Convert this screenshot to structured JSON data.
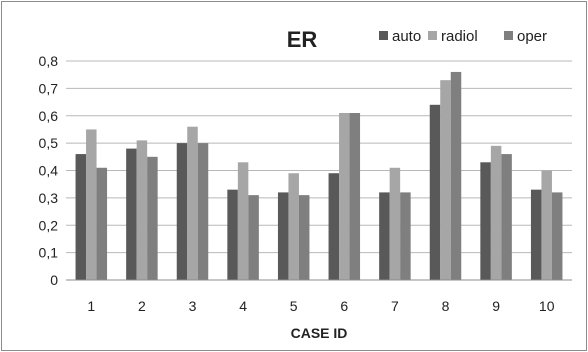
{
  "chart_data": {
    "type": "bar",
    "title": "ER",
    "xlabel": "CASE ID",
    "ylabel": "",
    "ylim": [
      0,
      0.8
    ],
    "yticks": [
      "0",
      "0,1",
      "0,2",
      "0,3",
      "0,4",
      "0,5",
      "0,6",
      "0,7",
      "0,8"
    ],
    "grid": true,
    "legend_position": "top-right",
    "categories": [
      "1",
      "2",
      "3",
      "4",
      "5",
      "6",
      "7",
      "8",
      "9",
      "10"
    ],
    "series": [
      {
        "name": "auto",
        "color": "#595959",
        "values": [
          0.46,
          0.48,
          0.5,
          0.33,
          0.32,
          0.39,
          0.32,
          0.64,
          0.43,
          0.33
        ]
      },
      {
        "name": "radiol",
        "color": "#a6a6a6",
        "values": [
          0.55,
          0.51,
          0.56,
          0.43,
          0.39,
          0.61,
          0.41,
          0.73,
          0.49,
          0.4
        ]
      },
      {
        "name": "oper",
        "color": "#7f7f7f",
        "values": [
          0.41,
          0.45,
          0.5,
          0.31,
          0.31,
          0.61,
          0.32,
          0.76,
          0.46,
          0.32
        ]
      }
    ]
  }
}
